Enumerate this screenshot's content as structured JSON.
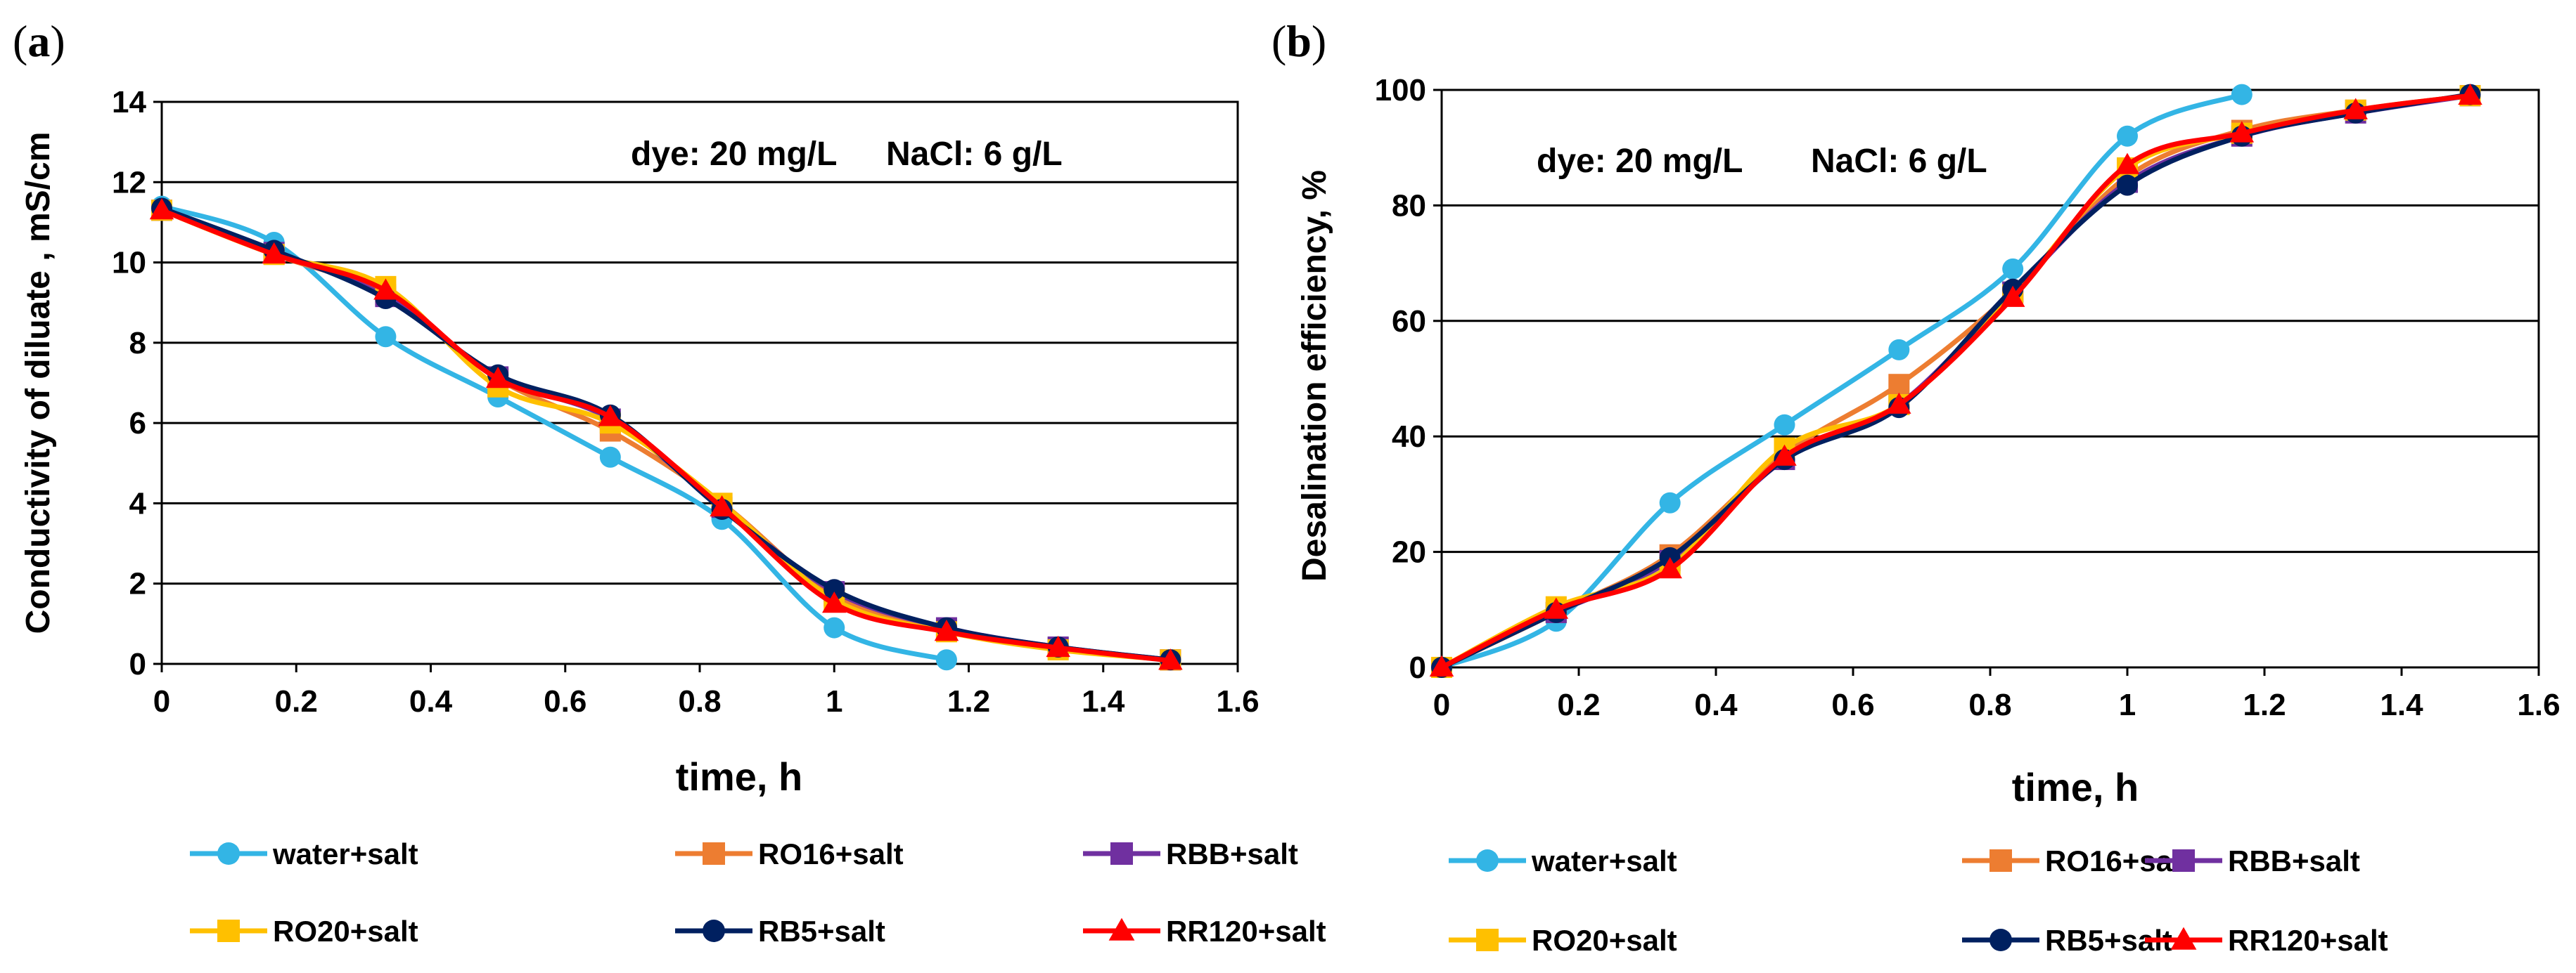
{
  "figure": {
    "panels": [
      {
        "label": "(a)",
        "label_letter": "a",
        "annotation_dye": "dye: 20 mg/L",
        "annotation_nacl": "NaCl: 6 g/L"
      },
      {
        "label": "(b)",
        "label_letter": "b",
        "annotation_dye": "dye: 20 mg/L",
        "annotation_nacl": "NaCl: 6 g/L"
      }
    ]
  },
  "chart_data": [
    {
      "type": "line",
      "title": "",
      "xlabel": "time, h",
      "ylabel": "Conductivity of diluate , mS/cm",
      "xlim": [
        0,
        1.6
      ],
      "ylim": [
        0,
        14
      ],
      "x_ticks": [
        0,
        0.2,
        0.4,
        0.6,
        0.8,
        1,
        1.2,
        1.4,
        1.6
      ],
      "x_tick_labels": [
        "0",
        "0.2",
        "0.4",
        "0.6",
        "0.8",
        "1",
        "1.2",
        "1.4",
        "1.6"
      ],
      "y_ticks": [
        0,
        2,
        4,
        6,
        8,
        10,
        12,
        14
      ],
      "y_tick_labels": [
        "0",
        "2",
        "4",
        "6",
        "8",
        "10",
        "12",
        "14"
      ],
      "grid": "horizontal",
      "legend_position": "bottom",
      "series": [
        {
          "name": "water+salt",
          "color": "#33B5E5",
          "marker": "circle",
          "x": [
            0,
            0.167,
            0.333,
            0.5,
            0.667,
            0.833,
            1.0,
            1.167
          ],
          "y": [
            11.4,
            10.5,
            8.15,
            6.65,
            5.15,
            3.6,
            0.9,
            0.1
          ]
        },
        {
          "name": "RO16+salt",
          "color": "#ED7D31",
          "marker": "square",
          "x": [
            0,
            0.167,
            0.333,
            0.5,
            0.667,
            0.833,
            1.0,
            1.167,
            1.333,
            1.5
          ],
          "y": [
            11.3,
            10.2,
            9.2,
            7.1,
            5.8,
            4.0,
            1.7,
            0.85,
            0.4,
            0.1
          ]
        },
        {
          "name": "RBB+salt",
          "color": "#7030A0",
          "marker": "square",
          "x": [
            0,
            0.167,
            0.333,
            0.5,
            0.667,
            0.833,
            1.0,
            1.167,
            1.333,
            1.5
          ],
          "y": [
            11.3,
            10.25,
            9.15,
            7.15,
            6.1,
            3.9,
            1.8,
            0.9,
            0.42,
            0.1
          ]
        },
        {
          "name": "RO20+salt",
          "color": "#FFC000",
          "marker": "square",
          "x": [
            0,
            0.167,
            0.333,
            0.5,
            0.667,
            0.833,
            1.0,
            1.167,
            1.333,
            1.5
          ],
          "y": [
            11.3,
            10.2,
            9.4,
            6.9,
            6.0,
            4.0,
            1.6,
            0.8,
            0.35,
            0.1
          ]
        },
        {
          "name": "RB5+salt",
          "color": "#002060",
          "marker": "circle",
          "x": [
            0,
            0.167,
            0.333,
            0.5,
            0.667,
            0.833,
            1.0,
            1.167,
            1.333,
            1.5
          ],
          "y": [
            11.35,
            10.3,
            9.1,
            7.2,
            6.2,
            3.85,
            1.85,
            0.9,
            0.42,
            0.1
          ]
        },
        {
          "name": "RR120+salt",
          "color": "#FF0000",
          "marker": "triangle",
          "x": [
            0,
            0.167,
            0.333,
            0.5,
            0.667,
            0.833,
            1.0,
            1.167,
            1.333,
            1.5
          ],
          "y": [
            11.3,
            10.2,
            9.3,
            7.1,
            6.15,
            3.9,
            1.5,
            0.8,
            0.4,
            0.08
          ]
        }
      ]
    },
    {
      "type": "line",
      "title": "",
      "xlabel": "time, h",
      "ylabel": "Desalination efficiency, %",
      "xlim": [
        0,
        1.6
      ],
      "ylim": [
        0,
        100
      ],
      "x_ticks": [
        0,
        0.2,
        0.4,
        0.6,
        0.8,
        1,
        1.2,
        1.4,
        1.6
      ],
      "x_tick_labels": [
        "0",
        "0.2",
        "0.4",
        "0.6",
        "0.8",
        "1",
        "1.2",
        "1.4",
        "1.6"
      ],
      "y_ticks": [
        0,
        20,
        40,
        60,
        80,
        100
      ],
      "y_tick_labels": [
        "0",
        "20",
        "40",
        "60",
        "80",
        "100"
      ],
      "grid": "horizontal",
      "legend_position": "bottom",
      "series": [
        {
          "name": "water+salt",
          "color": "#33B5E5",
          "marker": "circle",
          "x": [
            0,
            0.167,
            0.333,
            0.5,
            0.667,
            0.833,
            1.0,
            1.167
          ],
          "y": [
            0,
            8,
            28.5,
            42,
            55,
            69,
            92,
            99.2
          ]
        },
        {
          "name": "RO16+salt",
          "color": "#ED7D31",
          "marker": "square",
          "x": [
            0,
            0.167,
            0.333,
            0.5,
            0.667,
            0.833,
            1.0,
            1.167,
            1.333,
            1.5
          ],
          "y": [
            0,
            9.5,
            19.5,
            37,
            49,
            65,
            85,
            93,
            96.5,
            99
          ]
        },
        {
          "name": "RBB+salt",
          "color": "#7030A0",
          "marker": "square",
          "x": [
            0,
            0.167,
            0.333,
            0.5,
            0.667,
            0.833,
            1.0,
            1.167,
            1.333,
            1.5
          ],
          "y": [
            0,
            9.5,
            18.5,
            36,
            45.5,
            65,
            84,
            92,
            96,
            99
          ]
        },
        {
          "name": "RO20+salt",
          "color": "#FFC000",
          "marker": "square",
          "x": [
            0,
            0.167,
            0.333,
            0.5,
            0.667,
            0.833,
            1.0,
            1.167,
            1.333,
            1.5
          ],
          "y": [
            0,
            10.5,
            17.5,
            38,
            45.5,
            64.5,
            86.5,
            92.5,
            96.5,
            99
          ]
        },
        {
          "name": "RB5+salt",
          "color": "#002060",
          "marker": "circle",
          "x": [
            0,
            0.167,
            0.333,
            0.5,
            0.667,
            0.833,
            1.0,
            1.167,
            1.333,
            1.5
          ],
          "y": [
            0,
            9.5,
            19,
            36,
            45,
            65.5,
            83.5,
            92,
            96,
            99.2
          ]
        },
        {
          "name": "RR120+salt",
          "color": "#FF0000",
          "marker": "triangle",
          "x": [
            0,
            0.167,
            0.333,
            0.5,
            0.667,
            0.833,
            1.0,
            1.167,
            1.333,
            1.5
          ],
          "y": [
            0,
            10,
            17,
            36.5,
            45.5,
            64,
            87,
            92.5,
            96.5,
            99
          ]
        }
      ]
    }
  ]
}
